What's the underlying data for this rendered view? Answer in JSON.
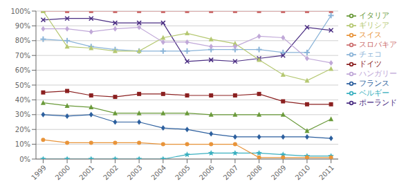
{
  "chart_data": {
    "type": "line",
    "x": [
      1999,
      2000,
      2001,
      2002,
      2003,
      2004,
      2005,
      2006,
      2007,
      2008,
      2009,
      2010,
      2011
    ],
    "xlim": [
      1998.7,
      2011.3
    ],
    "xticks": [
      1999,
      2000,
      2001,
      2002,
      2003,
      2004,
      2005,
      2006,
      2007,
      2008,
      2009,
      2010,
      2011
    ],
    "ylim": [
      0,
      100
    ],
    "yticks": [
      {
        "value": 0,
        "label": "0%"
      },
      {
        "value": 10,
        "label": "10%"
      },
      {
        "value": 20,
        "label": "20%"
      },
      {
        "value": 30,
        "label": "30%"
      },
      {
        "value": 40,
        "label": "40%"
      },
      {
        "value": 50,
        "label": "50%"
      },
      {
        "value": 60,
        "label": "60%"
      },
      {
        "value": 70,
        "label": "70%"
      },
      {
        "value": 80,
        "label": "80%"
      },
      {
        "value": 90,
        "label": "90%"
      },
      {
        "value": 100,
        "label": "100%"
      }
    ],
    "grid": "y",
    "legend": "right",
    "series": [
      {
        "name": "スロバキア",
        "color": "#cd7070",
        "marker": "square",
        "values": [
          100,
          100,
          100,
          100,
          100,
          100,
          100,
          100,
          100,
          100,
          100,
          100,
          100
        ]
      },
      {
        "name": "チェコ",
        "color": "#8ab4d8",
        "marker": "plus",
        "values": [
          81,
          80,
          76,
          74,
          73,
          73,
          73,
          74,
          74,
          74,
          72,
          72,
          97
        ]
      },
      {
        "name": "ポーランド",
        "color": "#4b2e83",
        "marker": "x",
        "values": [
          94,
          95,
          95,
          92,
          92,
          92,
          66,
          67,
          66,
          68,
          70,
          89,
          87
        ]
      },
      {
        "name": "フランス",
        "color": "#2c5f9e",
        "marker": "diamond",
        "values": [
          30,
          29,
          30,
          25,
          25,
          21,
          20,
          17,
          15,
          15,
          15,
          15,
          14
        ]
      },
      {
        "name": "ギリシア",
        "color": "#b5c872",
        "marker": "triangle",
        "values": [
          100,
          76,
          75,
          73,
          73,
          82,
          85,
          81,
          78,
          67,
          57,
          53,
          61
        ]
      },
      {
        "name": "ドイツ",
        "color": "#8b2020",
        "marker": "square",
        "values": [
          45,
          46,
          43,
          42,
          44,
          44,
          43,
          43,
          43,
          44,
          39,
          37,
          37
        ]
      },
      {
        "name": "イタリア",
        "color": "#6a9a3a",
        "marker": "triangle",
        "values": [
          38,
          36,
          35,
          31,
          31,
          31,
          31,
          30,
          30,
          30,
          30,
          19,
          27
        ]
      },
      {
        "name": "ハンガリー",
        "color": "#c0a8d8",
        "marker": "diamond",
        "values": [
          88,
          88,
          86,
          88,
          89,
          79,
          79,
          76,
          76,
          83,
          82,
          68,
          65
        ]
      },
      {
        "name": "ベルギー",
        "color": "#3ab0c0",
        "marker": "star",
        "values": [
          0,
          0,
          0,
          0,
          0,
          0,
          3,
          4,
          4,
          4,
          3,
          2,
          2
        ]
      },
      {
        "name": "スイス",
        "color": "#e8943a",
        "marker": "circle",
        "values": [
          13,
          11,
          11,
          11,
          11,
          10,
          10,
          10,
          10,
          1,
          1,
          1,
          1
        ]
      }
    ]
  }
}
